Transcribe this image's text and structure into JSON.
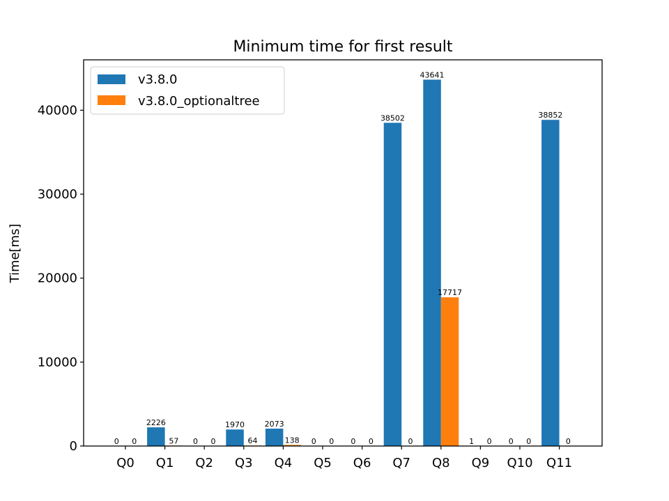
{
  "chart_data": {
    "type": "bar",
    "title": "Minimum time for first result",
    "xlabel": "",
    "ylabel": "Time[ms]",
    "categories": [
      "Q0",
      "Q1",
      "Q2",
      "Q3",
      "Q4",
      "Q5",
      "Q6",
      "Q7",
      "Q8",
      "Q9",
      "Q10",
      "Q11"
    ],
    "series": [
      {
        "name": "v3.8.0",
        "color": "#1f77b4",
        "values": [
          0,
          2226,
          0,
          1970,
          2073,
          0,
          0,
          38502,
          43641,
          1,
          0,
          38852
        ]
      },
      {
        "name": "v3.8.0_optionaltree",
        "color": "#ff7f0e",
        "values": [
          0,
          57,
          0,
          64,
          138,
          0,
          0,
          0,
          17717,
          0,
          0,
          0
        ]
      }
    ],
    "ylim": [
      0,
      46000
    ],
    "yticks": [
      0,
      10000,
      20000,
      30000,
      40000
    ],
    "ytick_labels": [
      "0",
      "10000",
      "20000",
      "30000",
      "40000"
    ],
    "legend_position": "top-left",
    "grid": false
  }
}
